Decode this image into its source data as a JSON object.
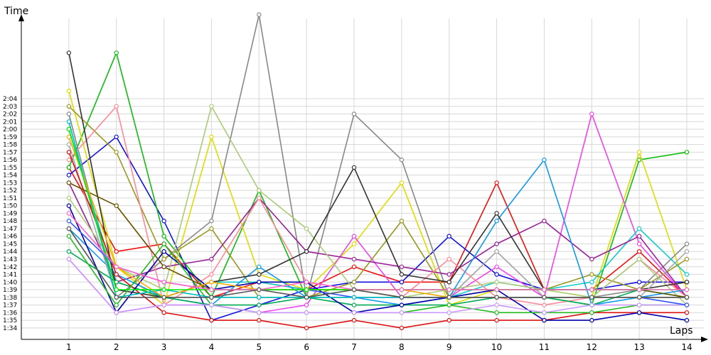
{
  "chart_data": {
    "type": "line",
    "ylabel": "Time",
    "xlabel": "Laps",
    "x": [
      1,
      2,
      3,
      4,
      5,
      6,
      7,
      8,
      9,
      10,
      11,
      12,
      13,
      14
    ],
    "xlim": [
      0,
      14.3
    ],
    "ylim_seconds": [
      92.5,
      134.5
    ],
    "y_ticks": [
      "1:34",
      "1:35",
      "1:36",
      "1:37",
      "1:38",
      "1:39",
      "1:40",
      "1:41",
      "1:42",
      "1:43",
      "1:44",
      "1:45",
      "1:46",
      "1:47",
      "1:48",
      "1:49",
      "1:50",
      "1:51",
      "1:52",
      "1:53",
      "1:54",
      "1:55",
      "1:56",
      "1:57",
      "1:58",
      "1:59",
      "2:00",
      "2:01",
      "2:02",
      "2:03",
      "2:04"
    ],
    "grid": true,
    "series": [
      {
        "color": "#ee1111",
        "values": [
          "1:55",
          "1:44",
          "1:45",
          "1:38",
          "1:40",
          "1:39",
          "1:42",
          "1:40",
          "1:40",
          "1:53",
          "1:39",
          "1:39",
          "1:44",
          "1:38"
        ]
      },
      {
        "color": "#1111dd",
        "values": [
          "1:54",
          "1:59",
          "1:48",
          "1:35",
          "1:37",
          "1:39",
          "1:40",
          "1:40",
          "1:46",
          "1:41",
          "1:39",
          "1:39",
          "1:40",
          "1:40"
        ]
      },
      {
        "color": "#11bb11",
        "values": [
          "1:55",
          "2:10",
          "1:46",
          "1:38",
          "1:52",
          "1:38",
          "1:39",
          "1:38",
          "1:38",
          "1:38",
          "1:38",
          "1:37",
          "1:56",
          "1:57"
        ]
      },
      {
        "color": "#dddd00",
        "values": [
          "2:05",
          "1:42",
          "1:37",
          "1:59",
          "1:41",
          "1:39",
          "1:45",
          "1:53",
          "1:37",
          "1:39",
          "1:39",
          "1:38",
          "1:57",
          "1:39"
        ]
      },
      {
        "color": "#888888",
        "values": [
          "2:02",
          "1:38",
          "1:43",
          "1:48",
          "2:15",
          "1:38",
          "2:02",
          "1:56",
          "1:38",
          "1:44",
          "1:38",
          "1:38",
          "1:39",
          "1:45"
        ]
      },
      {
        "color": "#ee44ee",
        "values": [
          "1:43",
          "1:36",
          "1:37",
          "1:37",
          "1:36",
          "1:37",
          "1:46",
          "1:38",
          "1:38",
          "1:42",
          "1:38",
          "2:02",
          "1:45",
          "1:38"
        ]
      },
      {
        "color": "#11cccc",
        "values": [
          "2:00",
          "1:40",
          "1:38",
          "1:40",
          "1:40",
          "1:39",
          "1:39",
          "1:39",
          "1:38",
          "1:40",
          "1:39",
          "1:40",
          "1:47",
          "1:41"
        ]
      },
      {
        "color": "#999922",
        "values": [
          "2:03",
          "1:57",
          "1:43",
          "1:47",
          "1:38",
          "1:38",
          "1:40",
          "1:48",
          "1:38",
          "1:39",
          "1:39",
          "1:41",
          "1:39",
          "1:43"
        ]
      },
      {
        "color": "#992299",
        "values": [
          "1:53",
          "1:40",
          "1:42",
          "1:43",
          "1:51",
          "1:44",
          "1:43",
          "1:42",
          "1:41",
          "1:45",
          "1:48",
          "1:43",
          "1:46",
          "1:38"
        ]
      },
      {
        "color": "#ff8899",
        "values": [
          "1:56",
          "2:03",
          "1:37",
          "1:41",
          "1:51",
          "1:40",
          "1:39",
          "1:38",
          "1:43",
          "1:38",
          "1:37",
          "1:38",
          "1:43",
          "1:38"
        ]
      },
      {
        "color": "#aacc77",
        "values": [
          "1:51",
          "1:42",
          "1:39",
          "2:03",
          "1:52",
          "1:47",
          "1:39",
          "1:38",
          "1:39",
          "1:40",
          "1:39",
          "1:38",
          "1:43",
          "1:37"
        ]
      },
      {
        "color": "#1199ee",
        "values": [
          "1:47",
          "1:41",
          "1:38",
          "1:37",
          "1:42",
          "1:38",
          "1:38",
          "1:37",
          "1:38",
          "1:48",
          "1:56",
          "1:37",
          "1:38",
          "1:39"
        ]
      },
      {
        "color": "#333333",
        "values": [
          "2:10",
          "1:39",
          "1:38",
          "1:40",
          "1:41",
          "1:44",
          "1:55",
          "1:41",
          "1:40",
          "1:49",
          "1:39",
          "1:39",
          "1:39",
          "1:40"
        ]
      },
      {
        "color": "#aaaaaa",
        "values": [
          "1:58",
          "1:38",
          "1:38",
          "1:38",
          "1:38",
          "1:38",
          "1:38",
          "1:38",
          "1:38",
          "1:44",
          "1:38",
          "1:38",
          "1:38",
          "1:44"
        ]
      },
      {
        "color": "#00aa55",
        "values": [
          "1:44",
          "1:40",
          "1:38",
          "1:37",
          "1:37",
          "1:38",
          "1:37",
          "1:37",
          "1:37",
          "1:38",
          "1:38",
          "1:37",
          "1:39",
          "1:38"
        ]
      },
      {
        "color": "#dd1111",
        "values": [
          "1:57",
          "1:41",
          "1:36",
          "1:35",
          "1:35",
          "1:34",
          "1:35",
          "1:34",
          "1:35",
          "1:35",
          "1:35",
          "1:36",
          "1:36",
          "1:36"
        ]
      },
      {
        "color": "#0000aa",
        "values": [
          "1:50",
          "1:36",
          "1:44",
          "1:39",
          "1:40",
          "1:40",
          "1:36",
          "1:37",
          "1:38",
          "1:39",
          "1:35",
          "1:35",
          "1:36",
          "1:35"
        ]
      },
      {
        "color": "#22bb22",
        "values": [
          "1:46",
          "1:37",
          "1:45",
          "1:37",
          "1:36",
          "1:36",
          "1:36",
          "1:36",
          "1:37",
          "1:36",
          "1:36",
          "1:36",
          "1:37",
          "1:37"
        ]
      },
      {
        "color": "#cc99ff",
        "values": [
          "1:43",
          "1:36",
          "1:37",
          "1:37",
          "1:36",
          "1:36",
          "1:36",
          "1:36",
          "1:36",
          "1:37",
          "1:36",
          "1:37",
          "1:37",
          "1:37"
        ]
      },
      {
        "color": "#665500",
        "values": [
          "1:53",
          "1:50",
          "1:42",
          "1:39",
          "1:39",
          "1:39",
          "1:39",
          "1:39",
          "1:39",
          "1:39",
          "1:39",
          "1:39",
          "1:39",
          "1:38"
        ]
      },
      {
        "color": "#3355ff",
        "values": [
          "1:48",
          "1:42",
          "1:40",
          "1:39",
          "1:39",
          "1:39",
          "1:38",
          "1:38",
          "1:38",
          "1:38",
          "1:38",
          "1:38",
          "1:38",
          "1:37"
        ]
      },
      {
        "color": "#00bbbb",
        "values": [
          "2:01",
          "1:38",
          "1:39",
          "1:38",
          "1:38",
          "1:38",
          "1:38",
          "1:38",
          "1:38",
          "1:38",
          "1:38",
          "1:38",
          "1:38",
          "1:38"
        ]
      },
      {
        "color": "#ffaa00",
        "values": [
          "1:59",
          "1:42",
          "1:38",
          "1:40",
          "1:39",
          "1:39",
          "1:39",
          "1:39",
          "1:38",
          "1:38",
          "1:38",
          "1:38",
          "1:38",
          "1:38"
        ]
      },
      {
        "color": "#00ee00",
        "values": [
          "2:00",
          "1:39",
          "1:39",
          "1:39",
          "1:39",
          "1:39",
          "1:39",
          "1:39",
          "1:39",
          "1:39",
          "1:39",
          "1:39",
          "1:39",
          "1:39"
        ]
      },
      {
        "color": "#ff66cc",
        "values": [
          "1:49",
          "1:42",
          "1:40",
          "1:39",
          "1:39",
          "1:40",
          "1:39",
          "1:39",
          "1:39",
          "1:39",
          "1:39",
          "1:39",
          "1:39",
          "1:39"
        ]
      },
      {
        "color": "#555555",
        "values": [
          "1:47",
          "1:38",
          "1:38",
          "1:38",
          "1:39",
          "1:38",
          "1:39",
          "1:38",
          "1:38",
          "1:38",
          "1:38",
          "1:38",
          "1:38",
          "1:38"
        ]
      }
    ]
  }
}
